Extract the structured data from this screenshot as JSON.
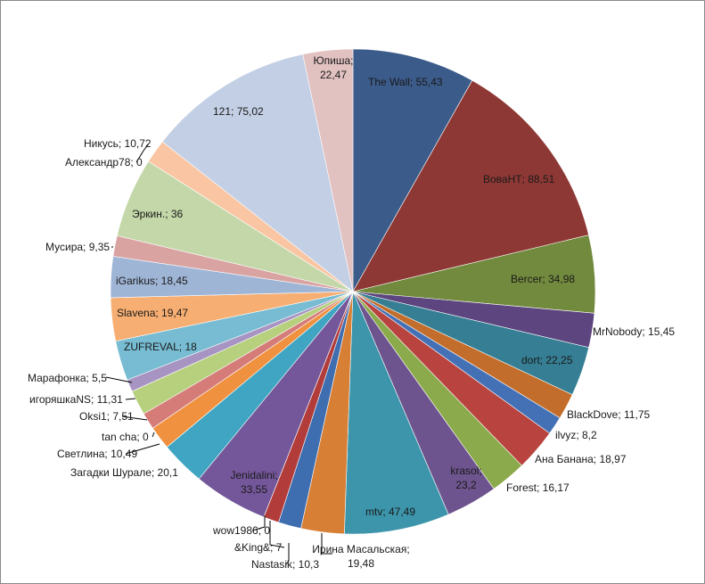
{
  "chart_data": {
    "type": "pie",
    "title": "",
    "start": "12 o'clock",
    "direction": "clockwise",
    "slices": [
      {
        "name": "The Wall",
        "value": 55.43,
        "text": "The Wall; 55,43",
        "color": "#3B5B8A"
      },
      {
        "name": "ВоваНТ",
        "value": 88.51,
        "text": "ВоваНТ; 88,51",
        "color": "#8E3835"
      },
      {
        "name": "Bercer",
        "value": 34.98,
        "text": "Bercer; 34,98",
        "color": "#728A3D"
      },
      {
        "name": "MrNobody",
        "value": 15.45,
        "text": "MrNobody; 15,45",
        "color": "#5D4680"
      },
      {
        "name": "dort",
        "value": 22.25,
        "text": "dort; 22,25",
        "color": "#357E93"
      },
      {
        "name": "BlackDove",
        "value": 11.75,
        "text": "BlackDove; 11,75",
        "color": "#C26D2B"
      },
      {
        "name": "ilvyz",
        "value": 8.2,
        "text": "ilvyz; 8,2",
        "color": "#4471B5"
      },
      {
        "name": "Ана Банана",
        "value": 18.97,
        "text": "Ана Банана; 18,97",
        "color": "#B8433F"
      },
      {
        "name": "Forest",
        "value": 16.17,
        "text": "Forest; 16,17",
        "color": "#8BAA4B"
      },
      {
        "name": "krasol",
        "value": 23.2,
        "text": "krasol;\n23,2",
        "color": "#6E548E"
      },
      {
        "name": "mtv",
        "value": 47.49,
        "text": "mtv; 47,49",
        "color": "#3C95AB"
      },
      {
        "name": "Ирина Масальская",
        "value": 19.48,
        "text": "Ирина Масальская;\n19,48",
        "color": "#D77F35"
      },
      {
        "name": "Nastasik",
        "value": 10.3,
        "text": "Nastasik; 10,3",
        "color": "#3E6DB0"
      },
      {
        "name": "&King&",
        "value": 7,
        "text": "&King&; 7",
        "color": "#B23C3A"
      },
      {
        "name": "wow1986",
        "value": 0,
        "text": "wow1986; 0",
        "color": "#8FB055"
      },
      {
        "name": "Jenidalini",
        "value": 33.55,
        "text": "Jenidalini;\n33,55",
        "color": "#74579A"
      },
      {
        "name": "Загадки Шурале",
        "value": 20.1,
        "text": "Загадки Шурале; 20,1",
        "color": "#3FA5C2"
      },
      {
        "name": "Светлина",
        "value": 10.49,
        "text": "Светлина; 10,49",
        "color": "#EF913F"
      },
      {
        "name": "tan cha",
        "value": 0,
        "text": "tan cha; 0",
        "color": "#A9C4E2"
      },
      {
        "name": "Oksi1",
        "value": 7.51,
        "text": "Oksi1; 7,51",
        "color": "#D57C79"
      },
      {
        "name": "игоряшкаNS",
        "value": 11.31,
        "text": "игоряшкаNS; 11,31",
        "color": "#B6D07E"
      },
      {
        "name": "Марафонка",
        "value": 5.5,
        "text": "Марафонка; 5,5",
        "color": "#A794C2"
      },
      {
        "name": "ZUFREVAL",
        "value": 18,
        "text": "ZUFREVAL;  18",
        "color": "#77BCD2"
      },
      {
        "name": "Slavena",
        "value": 19.47,
        "text": "Slavena; 19,47",
        "color": "#F7AE72"
      },
      {
        "name": "iGarikus",
        "value": 18.45,
        "text": "iGarikus; 18,45",
        "color": "#9FB5D6"
      },
      {
        "name": "Мусира",
        "value": 9.35,
        "text": "Мусира; 9,35",
        "color": "#D9A3A2"
      },
      {
        "name": "Эркин.",
        "value": 36,
        "text": "Эркин.; 36",
        "color": "#C3D7A8"
      },
      {
        "name": "Александр78",
        "value": 0,
        "text": "Александр78; 0",
        "color": "#B7ABCD"
      },
      {
        "name": "Никусь",
        "value": 10.72,
        "text": "Никусь; 10,72",
        "color": "#F9C5A2"
      },
      {
        "name": "121",
        "value": 75.02,
        "text": "121; 75,02",
        "color": "#C3CFE4"
      },
      {
        "name": "Юпиша",
        "value": 22.47,
        "text": "Юпиша;\n22,47",
        "color": "#E2C1C1"
      }
    ]
  }
}
